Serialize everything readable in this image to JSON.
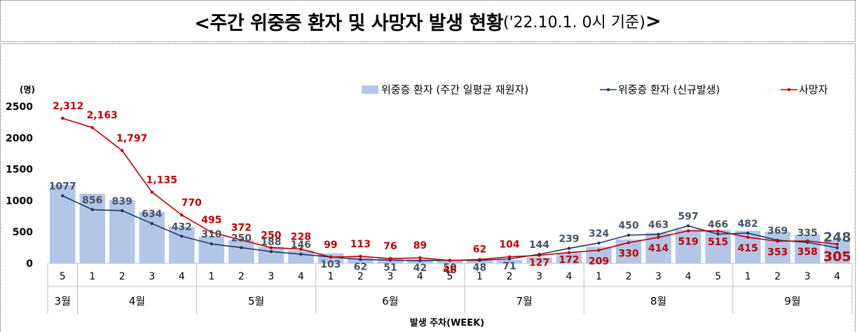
{
  "title": {
    "main": "<주간 위중증 환자 및 사망자 발생 현황",
    "sub": "('22.10.1. 0시 기준)",
    "close": ">"
  },
  "chart_data": {
    "type": "bar+line",
    "unit_label": "(명)",
    "ylim": [
      0,
      2500
    ],
    "yticks": [
      0,
      500,
      1000,
      1500,
      2000,
      2500
    ],
    "xlabel": "발생 주차(WEEK)",
    "weeks": [
      "5",
      "1",
      "2",
      "3",
      "4",
      "1",
      "2",
      "3",
      "4",
      "1",
      "2",
      "3",
      "4",
      "5",
      "1",
      "2",
      "3",
      "4",
      "1",
      "2",
      "3",
      "4",
      "5",
      "1",
      "2",
      "3",
      "4"
    ],
    "months": [
      {
        "label": "3월",
        "count": 1
      },
      {
        "label": "4월",
        "count": 4
      },
      {
        "label": "5월",
        "count": 4
      },
      {
        "label": "6월",
        "count": 5
      },
      {
        "label": "7월",
        "count": 4
      },
      {
        "label": "8월",
        "count": 5
      },
      {
        "label": "9월",
        "count": 4
      }
    ],
    "series": [
      {
        "name": "위중증 환자 (주간 일평균 재원자)",
        "kind": "bar",
        "color": "#b4c6e7",
        "values": [
          1250,
          1110,
          1010,
          820,
          580,
          430,
          370,
          265,
          210,
          160,
          100,
          80,
          65,
          50,
          45,
          55,
          95,
          170,
          265,
          380,
          485,
          540,
          535,
          520,
          505,
          460,
          375
        ]
      },
      {
        "name": "위중증 환자 (신규발생)",
        "kind": "line",
        "color": "#1f3864",
        "values": [
          1077,
          856,
          839,
          634,
          432,
          310,
          250,
          188,
          146,
          103,
          62,
          51,
          42,
          50,
          48,
          71,
          144,
          239,
          324,
          450,
          463,
          597,
          466,
          482,
          369,
          335,
          248
        ],
        "labels": [
          "1077",
          "856",
          "839",
          "634",
          "432",
          "310",
          "250",
          "188",
          "146",
          "103",
          "62",
          "51",
          "42",
          "50",
          "48",
          "71",
          "144",
          "239",
          "324",
          "450",
          "463",
          "597",
          "466",
          "482",
          "369",
          "335",
          "248"
        ]
      },
      {
        "name": "사망자",
        "kind": "line",
        "color": "#c00000",
        "values": [
          2312,
          2163,
          1797,
          1135,
          770,
          495,
          372,
          250,
          228,
          99,
          113,
          76,
          89,
          46,
          62,
          104,
          127,
          172,
          209,
          330,
          414,
          519,
          515,
          415,
          353,
          358,
          305
        ],
        "labels": [
          "2,312",
          "2,163",
          "1,797",
          "1,135",
          "770",
          "495",
          "372",
          "250",
          "228",
          "99",
          "113",
          "76",
          "89",
          "46",
          "62",
          "104",
          "127",
          "172",
          "209",
          "330",
          "414",
          "519",
          "515",
          "415",
          "353",
          "358",
          "305"
        ]
      }
    ]
  }
}
